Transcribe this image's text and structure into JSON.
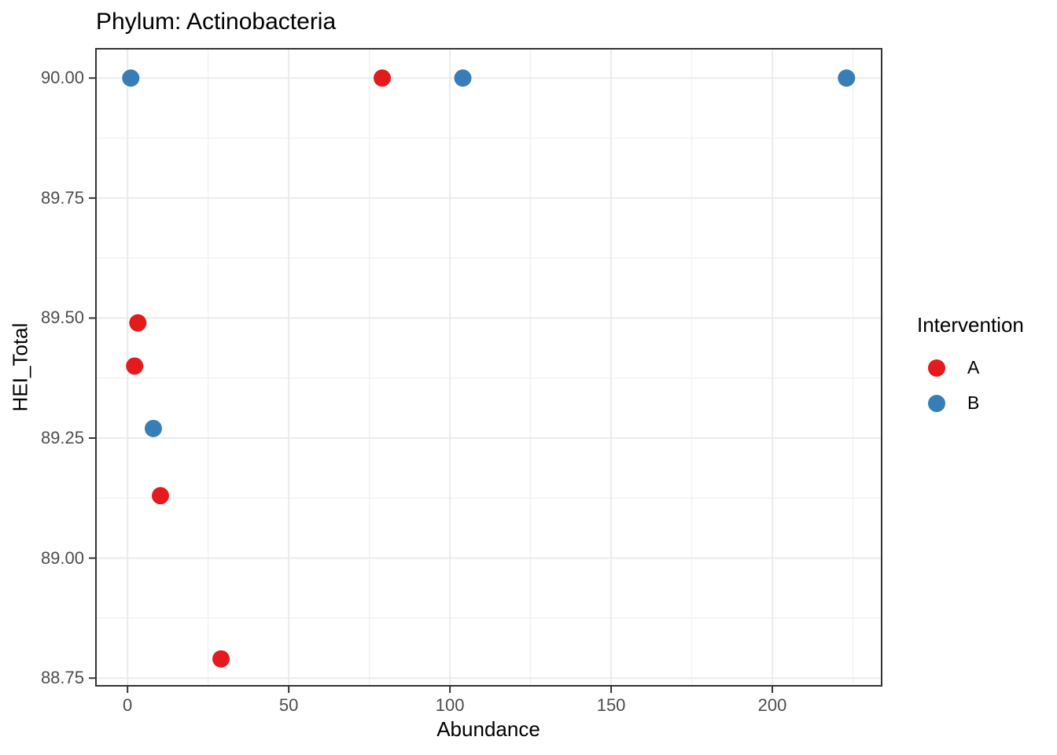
{
  "chart_data": {
    "type": "scatter",
    "title": "Phylum: Actinobacteria",
    "xlabel": "Abundance",
    "ylabel": "HEI_Total",
    "legend": {
      "title": "Intervention",
      "position": "right",
      "entries": [
        "A",
        "B"
      ]
    },
    "xlim": [
      -9.8,
      233.9
    ],
    "ylim": [
      88.734,
      90.061
    ],
    "x_ticks": {
      "values": [
        0,
        50,
        100,
        150,
        200
      ],
      "labels": [
        "0",
        "50",
        "100",
        "150",
        "200"
      ]
    },
    "y_ticks": {
      "values": [
        88.75,
        89.0,
        89.25,
        89.5,
        89.75,
        90.0
      ],
      "labels": [
        "88.75",
        "89.00",
        "89.25",
        "89.50",
        "89.75",
        "90.00"
      ]
    },
    "grid": {
      "major": true,
      "minor": true
    },
    "series": [
      {
        "name": "A",
        "color": "#E41A1C",
        "points": [
          {
            "x": 2.2,
            "y": 89.4
          },
          {
            "x": 3.2,
            "y": 89.49
          },
          {
            "x": 10.2,
            "y": 89.13
          },
          {
            "x": 29,
            "y": 88.79
          },
          {
            "x": 79,
            "y": 90.0
          }
        ]
      },
      {
        "name": "B",
        "color": "#377EB8",
        "points": [
          {
            "x": 1,
            "y": 90.0
          },
          {
            "x": 8,
            "y": 89.27
          },
          {
            "x": 104,
            "y": 90.0
          },
          {
            "x": 223,
            "y": 90.0
          }
        ]
      }
    ],
    "style": {
      "point_radius_px": 11,
      "grid_major_color": "#EBEBEB",
      "grid_minor_color": "#F1F1F1",
      "panel_border_color": "#333333",
      "tick_mark_color": "#333333",
      "tick_label_color": "#4D4D4D",
      "text_color": "#000000",
      "background": "#FFFFFF"
    }
  }
}
